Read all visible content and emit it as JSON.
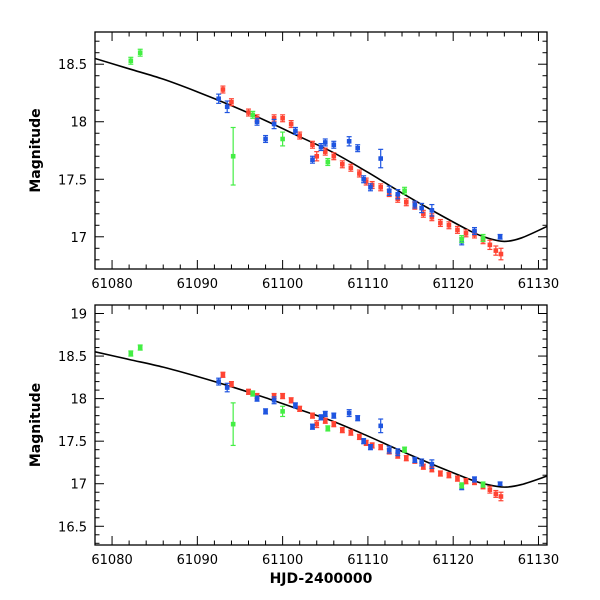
{
  "chart_data": [
    {
      "type": "scatter",
      "title": "",
      "xlabel": "",
      "ylabel": "Magnitude",
      "xlim": [
        61078,
        61131
      ],
      "ylim": [
        18.78,
        16.72
      ],
      "y_inverted": true,
      "xticks": [
        61080,
        61090,
        61100,
        61110,
        61120,
        61130
      ],
      "yticks": [
        17,
        17.5,
        18,
        18.5
      ],
      "ytick_labels": [
        "17",
        "17.5",
        "18",
        "18.5"
      ],
      "grid": false,
      "legend": "none",
      "model_curve": {
        "color": "#000000",
        "x": [
          61078,
          61082,
          61086,
          61090,
          61094,
          61098,
          61102,
          61106,
          61110,
          61114,
          61118,
          61122,
          61124,
          61126,
          61128,
          61131
        ],
        "y": [
          18.55,
          18.46,
          18.37,
          18.26,
          18.14,
          18.01,
          17.87,
          17.73,
          17.56,
          17.38,
          17.21,
          17.05,
          16.99,
          16.96,
          16.99,
          17.09
        ]
      },
      "series": [
        {
          "color": "#ff4433",
          "points": [
            {
              "x": 61093.0,
              "y": 18.28,
              "err": 0.03
            },
            {
              "x": 61094.0,
              "y": 18.17,
              "err": 0.03
            },
            {
              "x": 61096.0,
              "y": 18.08,
              "err": 0.03
            },
            {
              "x": 61097.0,
              "y": 18.03,
              "err": 0.03
            },
            {
              "x": 61099.0,
              "y": 18.03,
              "err": 0.03
            },
            {
              "x": 61100.0,
              "y": 18.03,
              "err": 0.03
            },
            {
              "x": 61101.0,
              "y": 17.98,
              "err": 0.03
            },
            {
              "x": 61102.0,
              "y": 17.88,
              "err": 0.03
            },
            {
              "x": 61103.5,
              "y": 17.8,
              "err": 0.03
            },
            {
              "x": 61104.0,
              "y": 17.7,
              "err": 0.04
            },
            {
              "x": 61105.0,
              "y": 17.74,
              "err": 0.03
            },
            {
              "x": 61106.0,
              "y": 17.7,
              "err": 0.03
            },
            {
              "x": 61107.0,
              "y": 17.63,
              "err": 0.03
            },
            {
              "x": 61108.0,
              "y": 17.6,
              "err": 0.03
            },
            {
              "x": 61109.0,
              "y": 17.55,
              "err": 0.03
            },
            {
              "x": 61109.8,
              "y": 17.48,
              "err": 0.03
            },
            {
              "x": 61110.5,
              "y": 17.45,
              "err": 0.03
            },
            {
              "x": 61111.5,
              "y": 17.43,
              "err": 0.03
            },
            {
              "x": 61112.5,
              "y": 17.38,
              "err": 0.03
            },
            {
              "x": 61113.5,
              "y": 17.33,
              "err": 0.03
            },
            {
              "x": 61114.5,
              "y": 17.3,
              "err": 0.03
            },
            {
              "x": 61115.5,
              "y": 17.27,
              "err": 0.03
            },
            {
              "x": 61116.5,
              "y": 17.2,
              "err": 0.03
            },
            {
              "x": 61117.5,
              "y": 17.17,
              "err": 0.03
            },
            {
              "x": 61118.5,
              "y": 17.12,
              "err": 0.03
            },
            {
              "x": 61119.5,
              "y": 17.1,
              "err": 0.03
            },
            {
              "x": 61120.5,
              "y": 17.06,
              "err": 0.03
            },
            {
              "x": 61121.5,
              "y": 17.03,
              "err": 0.03
            },
            {
              "x": 61122.5,
              "y": 17.02,
              "err": 0.03
            },
            {
              "x": 61123.5,
              "y": 16.97,
              "err": 0.03
            },
            {
              "x": 61124.3,
              "y": 16.93,
              "err": 0.04
            },
            {
              "x": 61125.0,
              "y": 16.88,
              "err": 0.04
            },
            {
              "x": 61125.6,
              "y": 16.85,
              "err": 0.05
            }
          ]
        },
        {
          "color": "#1f55e0",
          "points": [
            {
              "x": 61092.5,
              "y": 18.2,
              "err": 0.04
            },
            {
              "x": 61093.5,
              "y": 18.13,
              "err": 0.05
            },
            {
              "x": 61097.0,
              "y": 18.0,
              "err": 0.03
            },
            {
              "x": 61098.0,
              "y": 17.85,
              "err": 0.03
            },
            {
              "x": 61099.0,
              "y": 17.98,
              "err": 0.04
            },
            {
              "x": 61101.5,
              "y": 17.92,
              "err": 0.03
            },
            {
              "x": 61103.5,
              "y": 17.67,
              "err": 0.03
            },
            {
              "x": 61104.5,
              "y": 17.78,
              "err": 0.03
            },
            {
              "x": 61105.0,
              "y": 17.82,
              "err": 0.03
            },
            {
              "x": 61106.0,
              "y": 17.8,
              "err": 0.03
            },
            {
              "x": 61107.8,
              "y": 17.83,
              "err": 0.04
            },
            {
              "x": 61108.8,
              "y": 17.77,
              "err": 0.03
            },
            {
              "x": 61109.5,
              "y": 17.5,
              "err": 0.03
            },
            {
              "x": 61110.3,
              "y": 17.43,
              "err": 0.03
            },
            {
              "x": 61111.5,
              "y": 17.68,
              "err": 0.08
            },
            {
              "x": 61112.5,
              "y": 17.4,
              "err": 0.04
            },
            {
              "x": 61113.5,
              "y": 17.37,
              "err": 0.04
            },
            {
              "x": 61115.5,
              "y": 17.28,
              "err": 0.03
            },
            {
              "x": 61116.3,
              "y": 17.25,
              "err": 0.04
            },
            {
              "x": 61117.5,
              "y": 17.23,
              "err": 0.05
            },
            {
              "x": 61121.0,
              "y": 16.96,
              "err": 0.03
            },
            {
              "x": 61122.5,
              "y": 17.05,
              "err": 0.03
            },
            {
              "x": 61125.5,
              "y": 17.0,
              "err": 0.02
            }
          ]
        },
        {
          "color": "#44ee44",
          "points": [
            {
              "x": 61082.2,
              "y": 18.53,
              "err": 0.03
            },
            {
              "x": 61083.3,
              "y": 18.6,
              "err": 0.03
            },
            {
              "x": 61094.2,
              "y": 17.7,
              "err": 0.25
            },
            {
              "x": 61096.5,
              "y": 18.06,
              "err": 0.03
            },
            {
              "x": 61100.0,
              "y": 17.85,
              "err": 0.06
            },
            {
              "x": 61105.3,
              "y": 17.65,
              "err": 0.03
            },
            {
              "x": 61114.3,
              "y": 17.4,
              "err": 0.03
            },
            {
              "x": 61121.0,
              "y": 16.98,
              "err": 0.03
            },
            {
              "x": 61123.5,
              "y": 16.99,
              "err": 0.03
            }
          ]
        }
      ]
    },
    {
      "type": "scatter",
      "title": "",
      "xlabel": "HJD-2400000",
      "ylabel": "Magnitude",
      "xlim": [
        61078,
        61131
      ],
      "ylim": [
        19.1,
        16.28
      ],
      "y_inverted": true,
      "xticks": [
        61080,
        61090,
        61100,
        61110,
        61120,
        61130
      ],
      "yticks": [
        16.5,
        17,
        17.5,
        18,
        18.5,
        19
      ],
      "ytick_labels": [
        "16.5",
        "17",
        "17.5",
        "18",
        "18.5",
        "19"
      ],
      "grid": false,
      "legend": "none",
      "model_curve": {
        "color": "#000000",
        "x": [
          61078,
          61082,
          61086,
          61090,
          61094,
          61098,
          61102,
          61106,
          61110,
          61114,
          61118,
          61122,
          61124,
          61126,
          61128,
          61131
        ],
        "y": [
          18.55,
          18.46,
          18.37,
          18.26,
          18.14,
          18.01,
          17.87,
          17.73,
          17.56,
          17.38,
          17.21,
          17.05,
          16.99,
          16.96,
          16.99,
          17.09
        ]
      },
      "series": [
        {
          "color": "#ff4433",
          "points": [
            {
              "x": 61093.0,
              "y": 18.28,
              "err": 0.03
            },
            {
              "x": 61094.0,
              "y": 18.17,
              "err": 0.03
            },
            {
              "x": 61096.0,
              "y": 18.08,
              "err": 0.03
            },
            {
              "x": 61097.0,
              "y": 18.03,
              "err": 0.03
            },
            {
              "x": 61099.0,
              "y": 18.03,
              "err": 0.03
            },
            {
              "x": 61100.0,
              "y": 18.03,
              "err": 0.03
            },
            {
              "x": 61101.0,
              "y": 17.98,
              "err": 0.03
            },
            {
              "x": 61102.0,
              "y": 17.88,
              "err": 0.03
            },
            {
              "x": 61103.5,
              "y": 17.8,
              "err": 0.03
            },
            {
              "x": 61104.0,
              "y": 17.7,
              "err": 0.04
            },
            {
              "x": 61105.0,
              "y": 17.74,
              "err": 0.03
            },
            {
              "x": 61106.0,
              "y": 17.7,
              "err": 0.03
            },
            {
              "x": 61107.0,
              "y": 17.63,
              "err": 0.03
            },
            {
              "x": 61108.0,
              "y": 17.6,
              "err": 0.03
            },
            {
              "x": 61109.0,
              "y": 17.55,
              "err": 0.03
            },
            {
              "x": 61109.8,
              "y": 17.48,
              "err": 0.03
            },
            {
              "x": 61110.5,
              "y": 17.45,
              "err": 0.03
            },
            {
              "x": 61111.5,
              "y": 17.43,
              "err": 0.03
            },
            {
              "x": 61112.5,
              "y": 17.38,
              "err": 0.03
            },
            {
              "x": 61113.5,
              "y": 17.33,
              "err": 0.03
            },
            {
              "x": 61114.5,
              "y": 17.3,
              "err": 0.03
            },
            {
              "x": 61115.5,
              "y": 17.27,
              "err": 0.03
            },
            {
              "x": 61116.5,
              "y": 17.2,
              "err": 0.03
            },
            {
              "x": 61117.5,
              "y": 17.17,
              "err": 0.03
            },
            {
              "x": 61118.5,
              "y": 17.12,
              "err": 0.03
            },
            {
              "x": 61119.5,
              "y": 17.1,
              "err": 0.03
            },
            {
              "x": 61120.5,
              "y": 17.06,
              "err": 0.03
            },
            {
              "x": 61121.5,
              "y": 17.03,
              "err": 0.03
            },
            {
              "x": 61122.5,
              "y": 17.02,
              "err": 0.03
            },
            {
              "x": 61123.5,
              "y": 16.97,
              "err": 0.03
            },
            {
              "x": 61124.3,
              "y": 16.93,
              "err": 0.04
            },
            {
              "x": 61125.0,
              "y": 16.88,
              "err": 0.04
            },
            {
              "x": 61125.6,
              "y": 16.85,
              "err": 0.05
            }
          ]
        },
        {
          "color": "#1f55e0",
          "points": [
            {
              "x": 61092.5,
              "y": 18.2,
              "err": 0.04
            },
            {
              "x": 61093.5,
              "y": 18.13,
              "err": 0.05
            },
            {
              "x": 61097.0,
              "y": 18.0,
              "err": 0.03
            },
            {
              "x": 61098.0,
              "y": 17.85,
              "err": 0.03
            },
            {
              "x": 61099.0,
              "y": 17.98,
              "err": 0.04
            },
            {
              "x": 61101.5,
              "y": 17.92,
              "err": 0.03
            },
            {
              "x": 61103.5,
              "y": 17.67,
              "err": 0.03
            },
            {
              "x": 61104.5,
              "y": 17.78,
              "err": 0.03
            },
            {
              "x": 61105.0,
              "y": 17.82,
              "err": 0.03
            },
            {
              "x": 61106.0,
              "y": 17.8,
              "err": 0.03
            },
            {
              "x": 61107.8,
              "y": 17.83,
              "err": 0.04
            },
            {
              "x": 61108.8,
              "y": 17.77,
              "err": 0.03
            },
            {
              "x": 61109.5,
              "y": 17.5,
              "err": 0.03
            },
            {
              "x": 61110.3,
              "y": 17.43,
              "err": 0.03
            },
            {
              "x": 61111.5,
              "y": 17.68,
              "err": 0.08
            },
            {
              "x": 61112.5,
              "y": 17.4,
              "err": 0.04
            },
            {
              "x": 61113.5,
              "y": 17.37,
              "err": 0.04
            },
            {
              "x": 61115.5,
              "y": 17.28,
              "err": 0.03
            },
            {
              "x": 61116.3,
              "y": 17.25,
              "err": 0.04
            },
            {
              "x": 61117.5,
              "y": 17.23,
              "err": 0.05
            },
            {
              "x": 61121.0,
              "y": 16.96,
              "err": 0.03
            },
            {
              "x": 61122.5,
              "y": 17.05,
              "err": 0.03
            },
            {
              "x": 61125.5,
              "y": 17.0,
              "err": 0.02
            }
          ]
        },
        {
          "color": "#44ee44",
          "points": [
            {
              "x": 61082.2,
              "y": 18.53,
              "err": 0.03
            },
            {
              "x": 61083.3,
              "y": 18.6,
              "err": 0.03
            },
            {
              "x": 61094.2,
              "y": 17.7,
              "err": 0.25
            },
            {
              "x": 61096.5,
              "y": 18.06,
              "err": 0.03
            },
            {
              "x": 61100.0,
              "y": 17.85,
              "err": 0.06
            },
            {
              "x": 61105.3,
              "y": 17.65,
              "err": 0.03
            },
            {
              "x": 61114.3,
              "y": 17.4,
              "err": 0.03
            },
            {
              "x": 61121.0,
              "y": 16.98,
              "err": 0.03
            },
            {
              "x": 61123.5,
              "y": 16.99,
              "err": 0.03
            }
          ]
        }
      ]
    }
  ]
}
